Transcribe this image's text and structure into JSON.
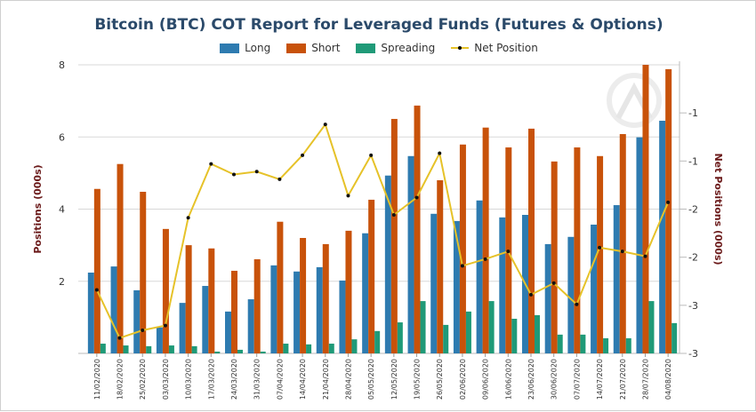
{
  "chart_data": {
    "type": "bar",
    "title": "Bitcoin (BTC) COT Report for Leveraged Funds (Futures & Options)",
    "ylabel": "Positions (000s)",
    "y2label": "Net Positions (000s)",
    "ylim": [
      0,
      8
    ],
    "yticks": [
      2,
      4,
      6,
      8
    ],
    "y2lim": [
      -3.5,
      -0.5
    ],
    "y2ticks": [
      -1.0,
      -1.5,
      -2.0,
      -2.5,
      -3.0,
      -3.5
    ],
    "y2ticklabels": [
      "-1",
      "-1",
      "-2",
      "-2",
      "-3",
      "-3"
    ],
    "grid": true,
    "legend_placement": "top",
    "categories": [
      "11/02/2020",
      "18/02/2020",
      "25/02/2020",
      "03/03/2020",
      "10/03/2020",
      "17/03/2020",
      "24/03/2020",
      "31/03/2020",
      "07/04/2020",
      "14/04/2020",
      "21/04/2020",
      "28/04/2020",
      "05/05/2020",
      "12/05/2020",
      "19/05/2020",
      "26/05/2020",
      "02/06/2020",
      "09/06/2020",
      "16/06/2020",
      "23/06/2020",
      "30/06/2020",
      "07/07/2020",
      "14/07/2020",
      "21/07/2020",
      "28/07/2020",
      "04/08/2020"
    ],
    "series": [
      {
        "name": "Long",
        "type": "bar",
        "axis": "left",
        "color": "#2e7bb0",
        "values": [
          2.24,
          2.41,
          1.75,
          0.72,
          1.4,
          1.87,
          1.16,
          1.5,
          2.44,
          2.27,
          2.39,
          2.02,
          3.33,
          4.93,
          5.47,
          3.87,
          3.67,
          4.24,
          3.77,
          3.84,
          3.03,
          3.23,
          3.57,
          4.11,
          5.99,
          6.45
        ]
      },
      {
        "name": "Short",
        "type": "bar",
        "axis": "left",
        "color": "#c8520a",
        "values": [
          4.56,
          5.25,
          4.48,
          3.45,
          3.0,
          2.91,
          2.29,
          2.61,
          3.65,
          3.2,
          3.03,
          3.4,
          4.26,
          6.5,
          6.87,
          4.8,
          5.79,
          6.26,
          5.71,
          6.23,
          5.32,
          5.71,
          5.47,
          6.08,
          8.0,
          7.88
        ]
      },
      {
        "name": "Spreading",
        "type": "bar",
        "axis": "left",
        "color": "#1f9a78",
        "values": [
          0.27,
          0.22,
          0.2,
          0.22,
          0.2,
          0.05,
          0.1,
          0.05,
          0.27,
          0.25,
          0.27,
          0.39,
          0.62,
          0.86,
          1.45,
          0.79,
          1.16,
          1.45,
          0.96,
          1.06,
          0.52,
          0.52,
          0.42,
          0.42,
          1.45,
          0.84
        ]
      },
      {
        "name": "Net Position",
        "type": "line",
        "axis": "right",
        "color": "#e6c229",
        "values": [
          -2.84,
          -3.34,
          -3.26,
          -3.21,
          -2.09,
          -1.53,
          -1.64,
          -1.61,
          -1.69,
          -1.44,
          -1.12,
          -1.86,
          -1.44,
          -2.06,
          -1.88,
          -1.42,
          -2.59,
          -2.52,
          -2.44,
          -2.89,
          -2.77,
          -2.99,
          -2.4,
          -2.44,
          -2.49,
          -1.93
        ]
      }
    ]
  }
}
